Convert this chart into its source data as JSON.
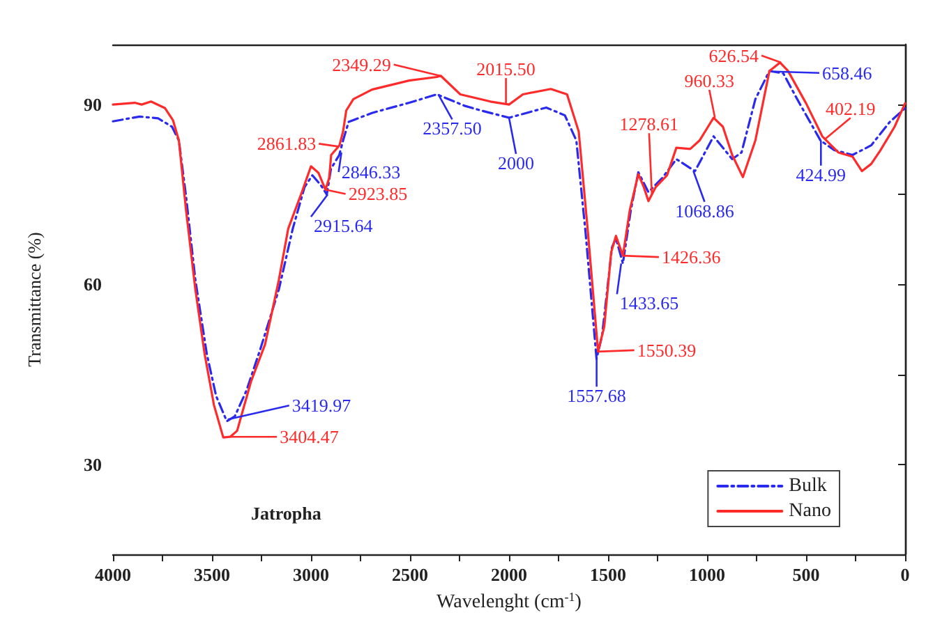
{
  "chart_data": {
    "type": "line",
    "xlabel": "Wavelenght (cm$^{-1}$)",
    "ylabel": "Transmittance (%)",
    "xlim": [
      4000,
      0
    ],
    "xticks": [
      4000,
      {
        "value": 3750,
        "label": null
      },
      3500,
      {
        "value": 3250,
        "label": null
      },
      3000,
      {
        "value": 2750,
        "label": null
      },
      2500,
      {
        "value": 2250,
        "label": null
      },
      2000,
      {
        "value": 1750,
        "label": null
      },
      1500,
      {
        "value": 1250,
        "label": null
      },
      1000,
      {
        "value": 750,
        "label": null
      },
      500,
      {
        "value": 250,
        "label": null
      },
      0
    ],
    "ylim": [
      15,
      100
    ],
    "yticks": [
      30,
      {
        "value": 45,
        "label": null
      },
      60,
      {
        "value": 75,
        "label": null
      },
      90
    ],
    "grid": false,
    "legend": "bottom right",
    "marker": "none",
    "series": [
      {
        "name": "Bulk",
        "color": "#2a2aee",
        "line_style": "dashed",
        "x": [
          4000,
          3866,
          3772,
          3702,
          3667,
          3631,
          3584,
          3526,
          3479,
          3425,
          3385,
          3326,
          3256,
          3162,
          3092,
          3033,
          2993,
          2951,
          2920,
          2899,
          2857,
          2838,
          2810,
          2692,
          2504,
          2364,
          2225,
          2141,
          2000,
          1812,
          1718,
          1660,
          1613,
          1558,
          1530,
          1480,
          1460,
          1425,
          1385,
          1347,
          1296,
          1225,
          1155,
          1061,
          967,
          873,
          826,
          756,
          685,
          615,
          545,
          427,
          357,
          265,
          171,
          77,
          0
        ],
        "values": [
          87.2,
          88,
          87.7,
          86.3,
          84,
          74.7,
          60.8,
          48.4,
          41.4,
          37.2,
          38,
          42.3,
          49.2,
          59.2,
          69.3,
          76.2,
          78.2,
          76.6,
          75,
          79.3,
          81.6,
          84,
          87.1,
          88.6,
          90.3,
          91.7,
          89.8,
          89,
          87.8,
          89.5,
          88.2,
          84,
          68.5,
          47.6,
          51.5,
          66.2,
          67.7,
          63.5,
          72.4,
          78.7,
          75.4,
          77.8,
          80.9,
          78.9,
          84.7,
          80.9,
          82,
          90.9,
          95.6,
          95.2,
          90.9,
          84,
          82.4,
          81.6,
          83.2,
          87.1,
          89.4
        ]
      },
      {
        "name": "Nano",
        "color": "#ff2a2a",
        "line_style": "solid",
        "x": [
          4000,
          3890,
          3855,
          3808,
          3737,
          3697,
          3667,
          3631,
          3584,
          3537,
          3490,
          3443,
          3408,
          3373,
          3303,
          3232,
          3162,
          3115,
          3045,
          3000,
          2962,
          2927,
          2908,
          2898,
          2856,
          2838,
          2822,
          2786,
          2692,
          2504,
          2364,
          2345,
          2246,
          2094,
          2000,
          1930,
          1789,
          1707,
          1648,
          1601,
          1550.39,
          1519,
          1484,
          1460,
          1425,
          1390,
          1347,
          1319,
          1296,
          1260,
          1202,
          1155,
          1085,
          1038,
          967,
          920,
          873,
          819,
          756,
          685,
          631,
          591,
          500,
          418,
          336,
          265,
          218,
          171,
          124,
          53,
          0
        ],
        "values": [
          90,
          90.3,
          90,
          90.5,
          89.4,
          87.4,
          84,
          72.4,
          59.2,
          48.4,
          39.9,
          34.5,
          34.6,
          35.6,
          43.8,
          50,
          60.8,
          69.3,
          75.5,
          79.7,
          78.6,
          75.8,
          77.8,
          81.6,
          83.2,
          85.5,
          89,
          90.9,
          92.5,
          94,
          94.6,
          94.8,
          91.7,
          90.5,
          90,
          91.7,
          92.6,
          91.7,
          85.5,
          68.5,
          48.8,
          53,
          65.4,
          68.1,
          64.8,
          72.4,
          78.4,
          76.2,
          73.9,
          76.2,
          78.2,
          82.8,
          82.6,
          84,
          87.8,
          86.3,
          81.6,
          77.9,
          84,
          95.6,
          97,
          95.6,
          90.2,
          84.7,
          82,
          81.3,
          78.9,
          80.1,
          82.4,
          86.3,
          90.2
        ]
      }
    ],
    "annotations": [
      "Jatropha",
      {
        "text": "2349.29",
        "x": 2349.29,
        "y": 94.8
      },
      {
        "text": "2015.50",
        "x": 2015.5,
        "y": 90
      },
      {
        "text": "2861.83",
        "x": 2861.83,
        "y": 83
      },
      {
        "text": "2846.33",
        "x": 2846.33,
        "y": 82
      },
      {
        "text": "2923.85",
        "x": 2923.85,
        "y": 75.8
      },
      {
        "text": "2915.64",
        "x": 2915.64,
        "y": 75
      },
      {
        "text": "3419.97",
        "x": 3419.97,
        "y": 37.5
      },
      {
        "text": "3404.47",
        "x": 3404.47,
        "y": 34.6
      },
      {
        "text": "2357.50",
        "x": 2357.5,
        "y": 91.7
      },
      {
        "text": "2000",
        "x": 2000,
        "y": 87.8
      },
      {
        "text": "1278.61",
        "x": 1278.61,
        "y": 75
      },
      {
        "text": "960.33",
        "x": 960.33,
        "y": 87.8
      },
      {
        "text": "626.54",
        "x": 626.54,
        "y": 97
      },
      {
        "text": "658.46",
        "x": 658.46,
        "y": 95.5
      },
      {
        "text": "402.19",
        "x": 402.19,
        "y": 84.3
      },
      {
        "text": "424.99",
        "x": 424.99,
        "y": 84
      },
      {
        "text": "1068.86",
        "x": 1068.86,
        "y": 78.9
      },
      {
        "text": "1426.36",
        "x": 1426.36,
        "y": 64.8
      },
      {
        "text": "1433.65",
        "x": 1433.65,
        "y": 63.5
      },
      {
        "text": "1550.39",
        "x": 1550.39,
        "y": 48.8
      },
      {
        "text": "1557.68",
        "x": 1557.68,
        "y": 47.6
      }
    ]
  }
}
